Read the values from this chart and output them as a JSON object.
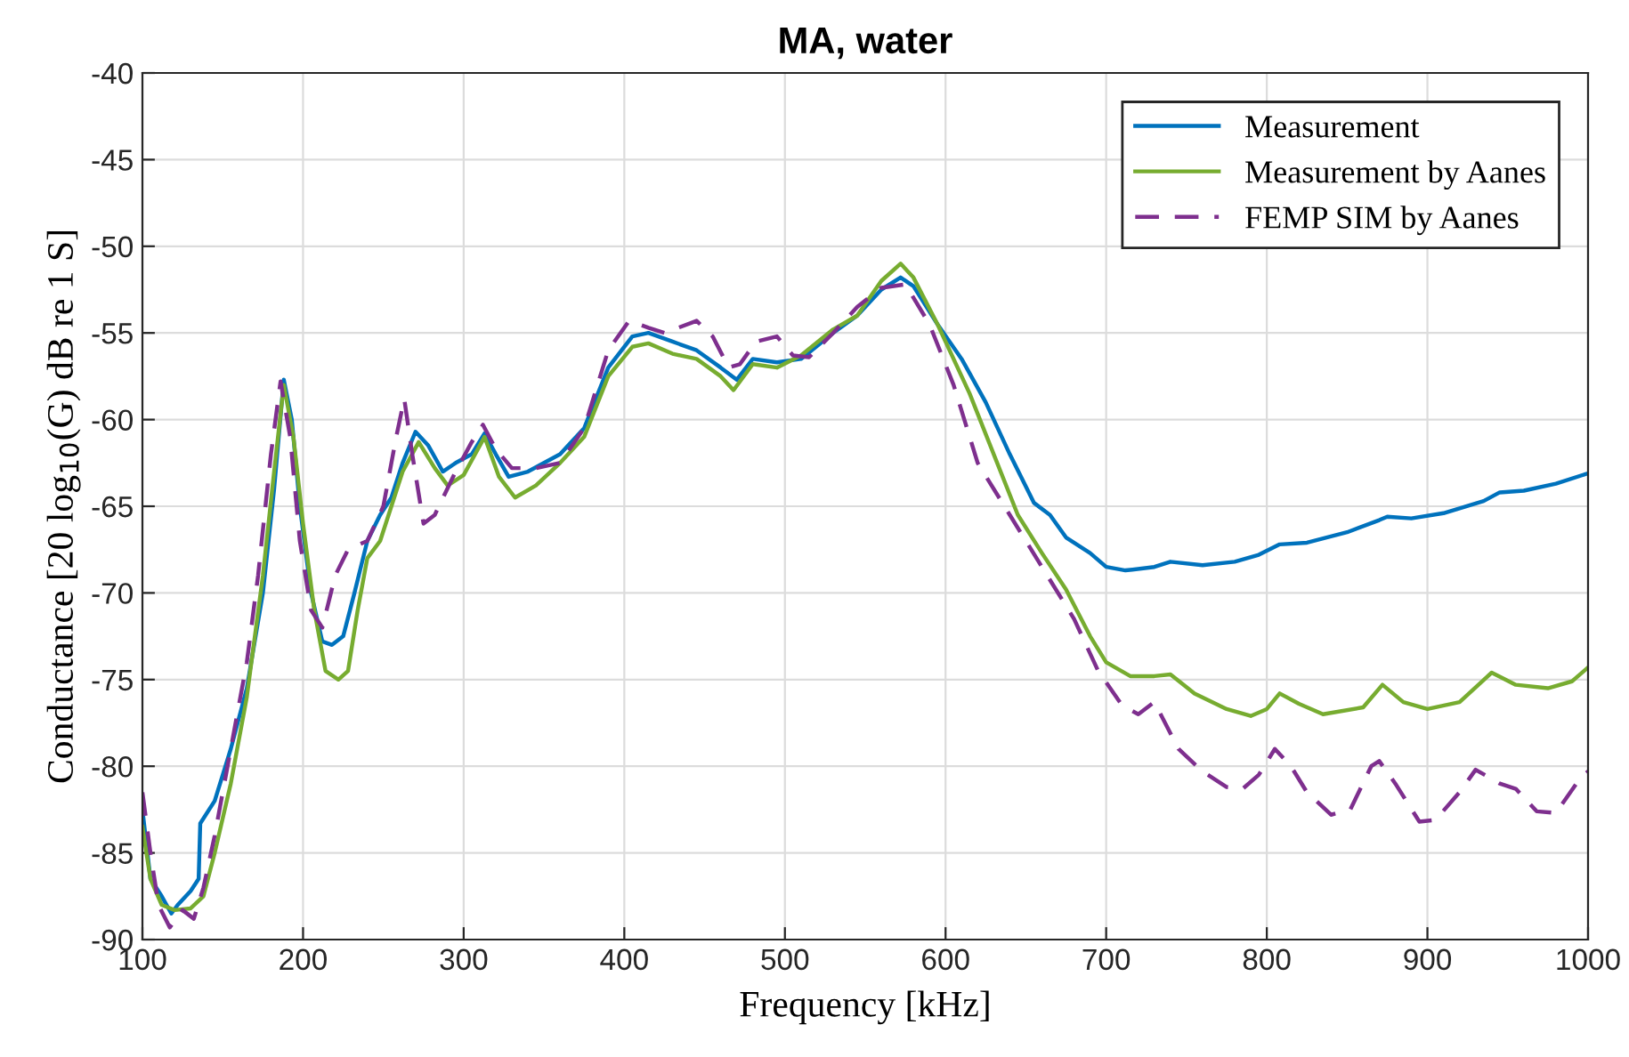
{
  "chart_data": {
    "type": "line",
    "title": "MA, water",
    "xlabel": "Frequency [kHz]",
    "ylabel": "Conductance [20 log$_{10}$(G) dB re 1 S]",
    "xlim": [
      100,
      1000
    ],
    "xticks": [
      100,
      200,
      300,
      400,
      500,
      600,
      700,
      800,
      900,
      1000
    ],
    "ylim": [
      -90,
      -40
    ],
    "yticks": [
      -90,
      -85,
      -80,
      -75,
      -70,
      -65,
      -60,
      -55,
      -50,
      -45,
      -40
    ],
    "grid": true,
    "legend": "top right",
    "series": [
      {
        "name": "Measurement",
        "color": "#0072bd",
        "line_style": "solid",
        "x": [
          100,
          105,
          112,
          118,
          122,
          130,
          135,
          136,
          145,
          155,
          165,
          175,
          182,
          188,
          193,
          198,
          205,
          212,
          218,
          225,
          232,
          240,
          248,
          255,
          262,
          270,
          278,
          287,
          295,
          305,
          313,
          320,
          328,
          340,
          360,
          375,
          390,
          405,
          415,
          430,
          445,
          460,
          470,
          480,
          495,
          510,
          530,
          545,
          560,
          572,
          580,
          595,
          610,
          625,
          640,
          655,
          665,
          675,
          690,
          700,
          712,
          730,
          740,
          760,
          780,
          795,
          808,
          825,
          850,
          870,
          875,
          890,
          910,
          935,
          945,
          960,
          980,
          1000
        ],
        "values": [
          -82.5,
          -86.5,
          -87.5,
          -88.5,
          -88,
          -87.2,
          -86.5,
          -83.3,
          -82,
          -79,
          -75.5,
          -70,
          -64,
          -57.7,
          -60,
          -65,
          -70,
          -72.8,
          -73,
          -72.5,
          -70,
          -67,
          -65.5,
          -64.5,
          -62.5,
          -60.7,
          -61.5,
          -63,
          -62.5,
          -62,
          -60.8,
          -62,
          -63.3,
          -63,
          -62,
          -60.5,
          -57,
          -55.2,
          -55,
          -55.5,
          -56,
          -57,
          -57.7,
          -56.5,
          -56.7,
          -56.5,
          -55,
          -54,
          -52.5,
          -51.8,
          -52.3,
          -54.5,
          -56.5,
          -59,
          -62,
          -64.8,
          -65.5,
          -66.8,
          -67.7,
          -68.5,
          -68.7,
          -68.5,
          -68.2,
          -68.4,
          -68.2,
          -67.8,
          -67.2,
          -67.1,
          -66.5,
          -65.8,
          -65.6,
          -65.7,
          -65.4,
          -64.7,
          -64.2,
          -64.1,
          -63.7,
          -63.1
        ]
      },
      {
        "name": "Measurement by Aanes",
        "color": "#77ac30",
        "line_style": "solid",
        "x": [
          100,
          105,
          112,
          120,
          130,
          138,
          145,
          155,
          165,
          175,
          182,
          188,
          194,
          200,
          207,
          214,
          222,
          228,
          234,
          240,
          248,
          255,
          262,
          272,
          282,
          290,
          300,
          313,
          322,
          332,
          345,
          360,
          375,
          390,
          405,
          415,
          430,
          445,
          460,
          468,
          480,
          495,
          510,
          530,
          545,
          560,
          572,
          580,
          595,
          615,
          630,
          645,
          660,
          675,
          690,
          700,
          715,
          730,
          740,
          755,
          775,
          790,
          800,
          808,
          820,
          835,
          860,
          872,
          885,
          900,
          920,
          940,
          955,
          975,
          990,
          1000
        ],
        "values": [
          -83.5,
          -86.5,
          -88,
          -88.3,
          -88.2,
          -87.5,
          -85,
          -81,
          -76,
          -69,
          -63,
          -58,
          -61,
          -66,
          -71,
          -74.5,
          -75,
          -74.5,
          -71,
          -68,
          -67,
          -65,
          -63,
          -61.3,
          -62.8,
          -63.8,
          -63.2,
          -61,
          -63.3,
          -64.5,
          -63.8,
          -62.5,
          -61,
          -57.5,
          -55.8,
          -55.6,
          -56.2,
          -56.5,
          -57.5,
          -58.3,
          -56.8,
          -57,
          -56.3,
          -54.8,
          -54,
          -52,
          -51,
          -51.8,
          -54.5,
          -58.5,
          -62,
          -65.5,
          -67.7,
          -69.8,
          -72.5,
          -74,
          -74.8,
          -74.8,
          -74.7,
          -75.8,
          -76.7,
          -77.1,
          -76.7,
          -75.8,
          -76.4,
          -77,
          -76.6,
          -75.3,
          -76.3,
          -76.7,
          -76.3,
          -74.6,
          -75.3,
          -75.5,
          -75.1,
          -74.3
        ]
      },
      {
        "name": "FEMP SIM by Aanes",
        "color": "#7e2f8e",
        "line_style": "dashed",
        "x": [
          100,
          105,
          110,
          117,
          125,
          132,
          138,
          145,
          155,
          165,
          172,
          180,
          186,
          192,
          198,
          205,
          212,
          220,
          228,
          240,
          250,
          258,
          263,
          268,
          275,
          282,
          295,
          305,
          312,
          320,
          330,
          345,
          360,
          375,
          390,
          403,
          415,
          425,
          445,
          455,
          465,
          472,
          482,
          495,
          505,
          515,
          530,
          545,
          560,
          575,
          590,
          605,
          620,
          640,
          660,
          680,
          695,
          710,
          720,
          730,
          745,
          760,
          775,
          785,
          795,
          805,
          815,
          825,
          840,
          852,
          865,
          870,
          880,
          895,
          905,
          920,
          930,
          945,
          955,
          968,
          980,
          995,
          1000
        ],
        "values": [
          -81.5,
          -85,
          -88,
          -89.3,
          -88.3,
          -88.8,
          -87,
          -84,
          -79,
          -74,
          -69,
          -62,
          -57.8,
          -61,
          -67,
          -71,
          -72,
          -69,
          -67.5,
          -67,
          -65,
          -61,
          -58.8,
          -62,
          -66,
          -65.5,
          -63,
          -61.3,
          -60.3,
          -61.7,
          -62.8,
          -62.8,
          -62.5,
          -60.5,
          -56,
          -54.3,
          -54.7,
          -55,
          -54.3,
          -55.2,
          -57,
          -56.8,
          -55.5,
          -55.2,
          -56.3,
          -56.4,
          -55,
          -53.5,
          -52.4,
          -52.2,
          -54.5,
          -58,
          -62.5,
          -65.5,
          -68.5,
          -71.5,
          -74.5,
          -76.5,
          -77,
          -76.3,
          -79,
          -80.3,
          -81.2,
          -81.3,
          -80.5,
          -79,
          -80,
          -81.5,
          -82.8,
          -82.5,
          -80,
          -79.7,
          -81,
          -83.2,
          -83.1,
          -81.5,
          -80.2,
          -81,
          -81.3,
          -82.6,
          -82.7,
          -80.7,
          -80.3
        ]
      }
    ]
  }
}
